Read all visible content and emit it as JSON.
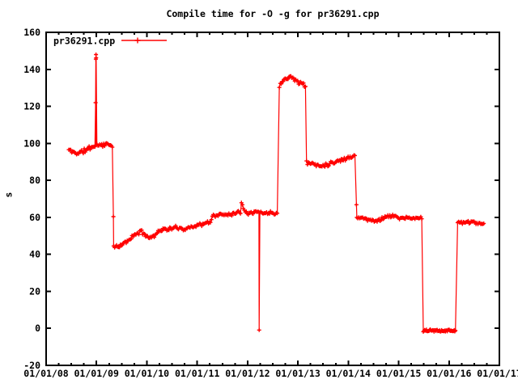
{
  "window": {
    "background": "#ffffff",
    "foreground": "#000000"
  },
  "chart_data": {
    "type": "line",
    "title": "Compile time for -O -g for pr36291.cpp",
    "xlabel": "",
    "ylabel": "s",
    "grid": false,
    "legend_position": "top-left",
    "x_range": [
      2008,
      2017
    ],
    "y_range": [
      -20,
      160
    ],
    "y_ticks": [
      160,
      140,
      120,
      100,
      80,
      60,
      40,
      20,
      0,
      -20
    ],
    "y_tick_labels": [
      "160",
      "140",
      "120",
      "100",
      "80",
      "60",
      "40",
      "20",
      "0",
      "-20"
    ],
    "x_tick_labels": [
      "01/01/08",
      "01/01/09",
      "01/01/10",
      "01/01/11",
      "01/01/12",
      "01/01/13",
      "01/01/14",
      "01/01/15",
      "01/01/16",
      "01/01/17"
    ],
    "x_minor_ticks_per_interval": 3,
    "series": [
      {
        "name": "pr36291.cpp",
        "color": "#ff0000",
        "marker": "plus"
      }
    ],
    "noise_seed": 11,
    "segments": [
      {
        "noise": 1.6,
        "density": 52,
        "points": [
          [
            2008.45,
            96.5
          ],
          [
            2008.55,
            95.0
          ],
          [
            2008.65,
            94.8
          ],
          [
            2008.78,
            96.2
          ],
          [
            2008.9,
            98.0
          ],
          [
            2009.0,
            99.0
          ],
          [
            2009.15,
            99.4
          ],
          [
            2009.32,
            99.2
          ]
        ]
      },
      {
        "noise": 1.2,
        "density": 52,
        "points": [
          [
            2009.34,
            44.2
          ],
          [
            2009.44,
            43.8
          ],
          [
            2009.52,
            45.5
          ],
          [
            2009.65,
            48.0
          ],
          [
            2009.78,
            51.0
          ],
          [
            2009.88,
            52.3
          ],
          [
            2009.97,
            50.8
          ],
          [
            2010.05,
            48.8
          ],
          [
            2010.16,
            50.5
          ],
          [
            2010.27,
            53.3
          ],
          [
            2010.45,
            53.6
          ],
          [
            2010.6,
            54.6
          ],
          [
            2010.75,
            53.6
          ],
          [
            2010.92,
            55.3
          ],
          [
            2011.1,
            56.3
          ],
          [
            2011.26,
            57.3
          ],
          [
            2011.31,
            61.0
          ],
          [
            2011.5,
            61.4
          ],
          [
            2011.7,
            62.0
          ],
          [
            2011.86,
            63.0
          ],
          [
            2011.885,
            69.5
          ],
          [
            2011.92,
            64.5
          ],
          [
            2012.0,
            62.5
          ],
          [
            2012.15,
            63.0
          ],
          [
            2012.35,
            62.3
          ],
          [
            2012.6,
            62.6
          ]
        ]
      },
      {
        "noise": 1.5,
        "density": 52,
        "points": [
          [
            2012.63,
            130.0
          ],
          [
            2012.68,
            133.5
          ],
          [
            2012.75,
            135.5
          ],
          [
            2012.82,
            136.2
          ],
          [
            2012.92,
            134.8
          ],
          [
            2013.02,
            133.2
          ],
          [
            2013.15,
            131.0
          ]
        ]
      },
      {
        "noise": 1.3,
        "density": 52,
        "points": [
          [
            2013.17,
            89.5
          ],
          [
            2013.3,
            89.0
          ],
          [
            2013.44,
            87.8
          ],
          [
            2013.6,
            88.8
          ],
          [
            2013.75,
            90.2
          ],
          [
            2013.9,
            91.2
          ],
          [
            2014.02,
            92.6
          ],
          [
            2014.15,
            93.6
          ]
        ]
      },
      {
        "noise": 1.1,
        "density": 52,
        "points": [
          [
            2014.17,
            60.2
          ],
          [
            2014.32,
            59.3
          ],
          [
            2014.48,
            58.2
          ],
          [
            2014.62,
            58.6
          ],
          [
            2014.76,
            60.6
          ],
          [
            2014.9,
            60.6
          ],
          [
            2015.02,
            59.7
          ],
          [
            2015.2,
            59.4
          ],
          [
            2015.47,
            59.6
          ]
        ]
      },
      {
        "noise": 0.7,
        "density": 80,
        "points": [
          [
            2015.49,
            -1.2
          ],
          [
            2016.13,
            -1.2
          ]
        ]
      },
      {
        "noise": 1.0,
        "density": 52,
        "points": [
          [
            2016.17,
            57.4
          ],
          [
            2016.32,
            57.1
          ],
          [
            2016.48,
            57.5
          ],
          [
            2016.6,
            56.6
          ],
          [
            2016.7,
            56.3
          ]
        ]
      }
    ],
    "outlier_points": [
      [
        2008.982,
        122.0
      ],
      [
        2008.986,
        145.5
      ],
      [
        2008.99,
        148.0
      ],
      [
        2008.994,
        146.3
      ],
      [
        2009.335,
        60.4
      ],
      [
        2012.23,
        -0.9
      ],
      [
        2014.161,
        66.8
      ]
    ]
  }
}
